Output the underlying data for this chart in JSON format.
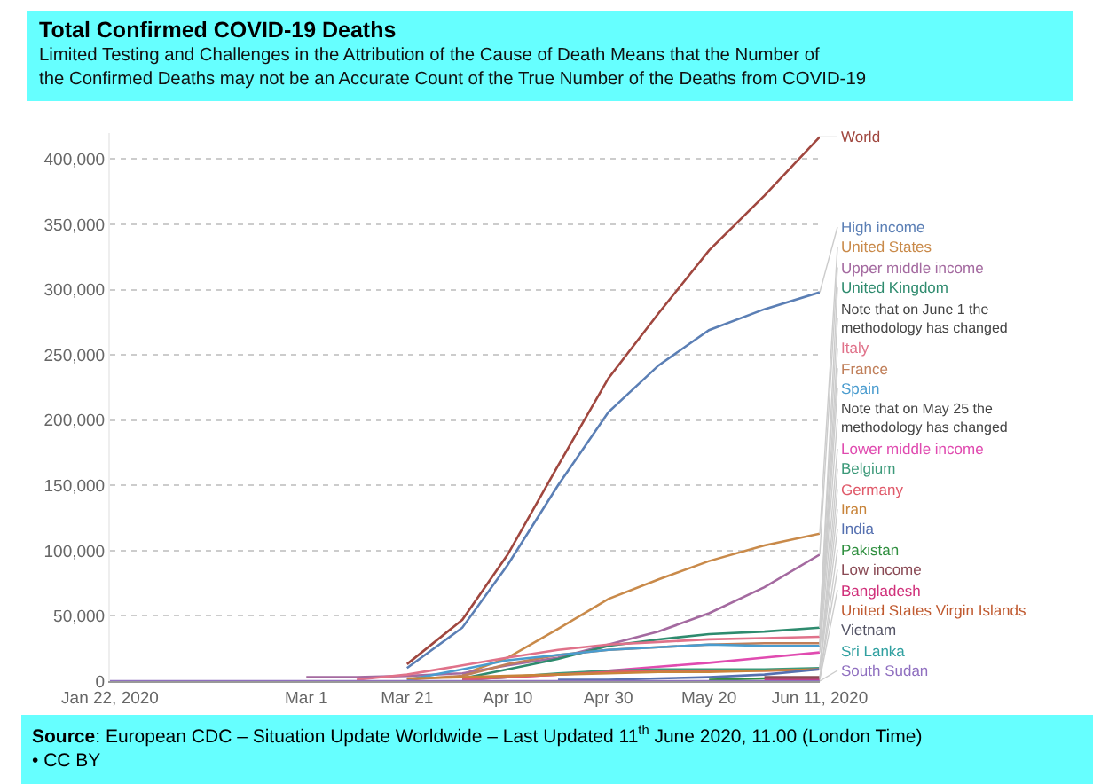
{
  "chart_data": {
    "type": "line",
    "title": "Total Confirmed COVID-19 Deaths",
    "subtitle": "Limited Testing and Challenges in the Attribution of the Cause of Death Means that the Number of the Confirmed Deaths may not be an Accurate Count of the True Number of the Deaths from COVID-19",
    "x": [
      "2020-01-22",
      "2020-03-01",
      "2020-03-11",
      "2020-03-21",
      "2020-04-01",
      "2020-04-10",
      "2020-04-20",
      "2020-04-30",
      "2020-05-10",
      "2020-05-20",
      "2020-05-31",
      "2020-06-11"
    ],
    "xlim": [
      "2020-01-22",
      "2020-06-11"
    ],
    "xticks": [
      {
        "value": "2020-01-22",
        "label": "Jan 22, 2020"
      },
      {
        "value": "2020-03-01",
        "label": "Mar 1"
      },
      {
        "value": "2020-03-21",
        "label": "Mar 21"
      },
      {
        "value": "2020-04-10",
        "label": "Apr 10"
      },
      {
        "value": "2020-04-30",
        "label": "Apr 30"
      },
      {
        "value": "2020-05-20",
        "label": "May 20"
      },
      {
        "value": "2020-06-11",
        "label": "Jun 11, 2020"
      }
    ],
    "ylim": [
      0,
      420000
    ],
    "yticks": [
      {
        "value": 0,
        "label": "0"
      },
      {
        "value": 50000,
        "label": "50,000"
      },
      {
        "value": 100000,
        "label": "100,000"
      },
      {
        "value": 150000,
        "label": "150,000"
      },
      {
        "value": 200000,
        "label": "200,000"
      },
      {
        "value": 250000,
        "label": "250,000"
      },
      {
        "value": 300000,
        "label": "300,000"
      },
      {
        "value": 350000,
        "label": "350,000"
      },
      {
        "value": 400000,
        "label": "400,000"
      }
    ],
    "grid": "y",
    "legend": false,
    "marker": "none",
    "line_style": "solid",
    "series": [
      {
        "name": "World",
        "color": "#a0473f",
        "values": [
          null,
          null,
          null,
          13000,
          47000,
          97000,
          165000,
          232000,
          282000,
          330000,
          372000,
          417000
        ]
      },
      {
        "name": "High income",
        "color": "#5b7fb5",
        "values": [
          null,
          null,
          null,
          10000,
          41000,
          89000,
          150000,
          206000,
          242000,
          269000,
          285000,
          298000
        ]
      },
      {
        "name": "United States",
        "color": "#c98a4a",
        "values": [
          null,
          null,
          null,
          null,
          5000,
          18000,
          40000,
          63000,
          78000,
          92000,
          104000,
          113000
        ]
      },
      {
        "name": "Upper middle income",
        "color": "#a46aa0",
        "values": [
          null,
          3000,
          3000,
          4000,
          6000,
          12000,
          18000,
          28000,
          38000,
          52000,
          72000,
          97000
        ]
      },
      {
        "name": "United Kingdom",
        "color": "#2e8b6e",
        "values": [
          null,
          null,
          null,
          null,
          2000,
          9000,
          17000,
          27000,
          32000,
          36000,
          38000,
          41000
        ]
      },
      {
        "name": "Italy",
        "color": "#e0728a",
        "values": [
          null,
          null,
          1000,
          5000,
          12000,
          18000,
          24000,
          28000,
          30000,
          32000,
          33000,
          34000
        ]
      },
      {
        "name": "France",
        "color": "#c07f5a",
        "values": [
          null,
          null,
          null,
          1000,
          4000,
          13000,
          20000,
          24000,
          26000,
          28000,
          29000,
          29000
        ]
      },
      {
        "name": "Spain",
        "color": "#4a9ccf",
        "values": [
          null,
          null,
          null,
          1000,
          9000,
          16000,
          20000,
          24000,
          26000,
          28000,
          27000,
          27000
        ]
      },
      {
        "name": "Lower middle income",
        "color": "#e04bb0",
        "values": [
          null,
          null,
          null,
          null,
          1000,
          3000,
          5000,
          8000,
          11000,
          14000,
          18000,
          22000
        ]
      },
      {
        "name": "Belgium",
        "color": "#3d9a7a",
        "values": [
          null,
          null,
          null,
          null,
          1000,
          3000,
          6000,
          8000,
          9000,
          9000,
          9000,
          10000
        ]
      },
      {
        "name": "Germany",
        "color": "#e05a6a",
        "values": [
          null,
          null,
          null,
          null,
          1000,
          3000,
          5000,
          7000,
          8000,
          8000,
          8000,
          9000
        ]
      },
      {
        "name": "Iran",
        "color": "#c8843a",
        "values": [
          null,
          null,
          null,
          2000,
          3000,
          4000,
          5000,
          6000,
          7000,
          7000,
          8000,
          9000
        ]
      },
      {
        "name": "India",
        "color": "#5570b0",
        "values": [
          null,
          null,
          null,
          null,
          null,
          null,
          1000,
          1000,
          2000,
          3000,
          5000,
          9000
        ]
      },
      {
        "name": "Pakistan",
        "color": "#2f8f3f",
        "values": [
          null,
          null,
          null,
          null,
          null,
          null,
          null,
          null,
          null,
          1000,
          2000,
          2000
        ]
      },
      {
        "name": "Low income",
        "color": "#8a4a55",
        "values": [
          null,
          null,
          null,
          null,
          null,
          null,
          null,
          null,
          null,
          null,
          3000,
          3000
        ]
      },
      {
        "name": "Bangladesh",
        "color": "#d0307a",
        "values": [
          null,
          null,
          null,
          null,
          null,
          null,
          null,
          null,
          null,
          null,
          1000,
          1000
        ]
      },
      {
        "name": "United States Virgin Islands",
        "color": "#c05a30",
        "values": [
          null,
          null,
          null,
          null,
          null,
          null,
          null,
          null,
          null,
          null,
          null,
          null
        ]
      },
      {
        "name": "Vietnam",
        "color": "#555566",
        "values": [
          null,
          null,
          null,
          null,
          null,
          null,
          null,
          null,
          null,
          null,
          null,
          null
        ]
      },
      {
        "name": "Sri Lanka",
        "color": "#30a0a0",
        "values": [
          null,
          null,
          null,
          null,
          null,
          null,
          null,
          null,
          null,
          null,
          null,
          null
        ]
      },
      {
        "name": "South Sudan",
        "color": "#9070c0",
        "values": [
          0,
          0,
          0,
          0,
          0,
          0,
          0,
          0,
          0,
          0,
          0,
          0
        ]
      }
    ],
    "annotations": [
      {
        "text": "Note that on June 1 the methodology has changed",
        "x": "2020-06-11",
        "y": 41000
      },
      {
        "text": "Note that on May 25 the methodology has changed",
        "x": "2020-06-11",
        "y": 27000
      },
      "Source: European CDC – Situation Update Worldwide – Last Updated 11$^{th}$ June 2020, 11.00 (London Time) • CC BY"
    ]
  }
}
